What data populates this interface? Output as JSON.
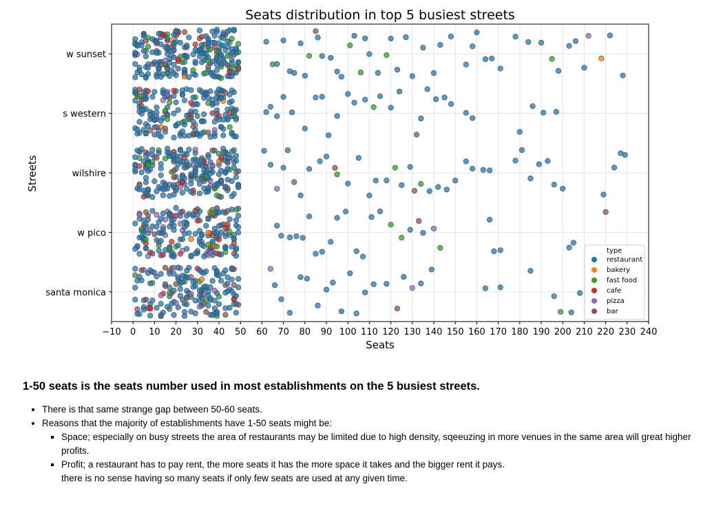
{
  "chart_data": {
    "type": "scatter",
    "title": "Seats distribution in top 5 busiest streets",
    "xlabel": "Seats",
    "ylabel": "Streets",
    "xlim": [
      -10,
      240
    ],
    "x_ticks": [
      -10,
      0,
      10,
      20,
      30,
      40,
      50,
      60,
      70,
      80,
      90,
      100,
      110,
      120,
      130,
      140,
      150,
      160,
      170,
      180,
      190,
      200,
      210,
      220,
      230,
      240
    ],
    "x_tick_labels": [
      "−10",
      "0",
      "10",
      "20",
      "30",
      "40",
      "50",
      "60",
      "70",
      "80",
      "90",
      "100",
      "110",
      "120",
      "130",
      "140",
      "150",
      "160",
      "170",
      "180",
      "190",
      "200",
      "210",
      "220",
      "230",
      "240"
    ],
    "categories": [
      "w sunset",
      "s western",
      "wilshire",
      "w pico",
      "santa monica"
    ],
    "grid": true,
    "jitter": "strip (vertical jitter within each street band)",
    "legend": {
      "title": "type",
      "placement": "bottom-right",
      "entries": [
        {
          "name": "restaurant",
          "color": "#1f77b4"
        },
        {
          "name": "bakery",
          "color": "#ff7f0e"
        },
        {
          "name": "fast food",
          "color": "#2ca02c"
        },
        {
          "name": "cafe",
          "color": "#d62728"
        },
        {
          "name": "pizza",
          "color": "#9467bd"
        },
        {
          "name": "bar",
          "color": "#8c564b"
        }
      ]
    },
    "density_summary": [
      {
        "street": "w sunset",
        "seats_1_50_points_approx": 240
      },
      {
        "street": "s western",
        "seats_1_50_points_approx": 200
      },
      {
        "street": "wilshire",
        "seats_1_50_points_approx": 230
      },
      {
        "street": "w pico",
        "seats_1_50_points_approx": 200
      },
      {
        "street": "santa monica",
        "seats_1_50_points_approx": 170
      }
    ],
    "points_above_50": [
      {
        "street": "w sunset",
        "type": "restaurant",
        "x": 62
      },
      {
        "street": "w sunset",
        "type": "fast food",
        "x": 65
      },
      {
        "street": "w sunset",
        "type": "restaurant",
        "x": 67
      },
      {
        "street": "w sunset",
        "type": "restaurant",
        "x": 70
      },
      {
        "street": "w sunset",
        "type": "restaurant",
        "x": 73
      },
      {
        "street": "w sunset",
        "type": "restaurant",
        "x": 75
      },
      {
        "street": "w sunset",
        "type": "restaurant",
        "x": 78
      },
      {
        "street": "w sunset",
        "type": "restaurant",
        "x": 80
      },
      {
        "street": "w sunset",
        "type": "fast food",
        "x": 82
      },
      {
        "street": "w sunset",
        "type": "bar",
        "x": 85
      },
      {
        "street": "w sunset",
        "type": "restaurant",
        "x": 86
      },
      {
        "street": "w sunset",
        "type": "restaurant",
        "x": 88
      },
      {
        "street": "w sunset",
        "type": "restaurant",
        "x": 92
      },
      {
        "street": "w sunset",
        "type": "restaurant",
        "x": 95
      },
      {
        "street": "w sunset",
        "type": "restaurant",
        "x": 97
      },
      {
        "street": "w sunset",
        "type": "fast food",
        "x": 101
      },
      {
        "street": "w sunset",
        "type": "restaurant",
        "x": 103
      },
      {
        "street": "w sunset",
        "type": "fast food",
        "x": 106
      },
      {
        "street": "w sunset",
        "type": "restaurant",
        "x": 108
      },
      {
        "street": "w sunset",
        "type": "restaurant",
        "x": 110
      },
      {
        "street": "w sunset",
        "type": "restaurant",
        "x": 114
      },
      {
        "street": "w sunset",
        "type": "fast food",
        "x": 118
      },
      {
        "street": "w sunset",
        "type": "restaurant",
        "x": 120
      },
      {
        "street": "w sunset",
        "type": "restaurant",
        "x": 123
      },
      {
        "street": "w sunset",
        "type": "restaurant",
        "x": 127
      },
      {
        "street": "w sunset",
        "type": "restaurant",
        "x": 130
      },
      {
        "street": "w sunset",
        "type": "restaurant",
        "x": 135
      },
      {
        "street": "w sunset",
        "type": "restaurant",
        "x": 140
      },
      {
        "street": "w sunset",
        "type": "restaurant",
        "x": 143
      },
      {
        "street": "w sunset",
        "type": "restaurant",
        "x": 148
      },
      {
        "street": "w sunset",
        "type": "restaurant",
        "x": 155
      },
      {
        "street": "w sunset",
        "type": "restaurant",
        "x": 158
      },
      {
        "street": "w sunset",
        "type": "restaurant",
        "x": 160
      },
      {
        "street": "w sunset",
        "type": "restaurant",
        "x": 164
      },
      {
        "street": "w sunset",
        "type": "restaurant",
        "x": 167
      },
      {
        "street": "w sunset",
        "type": "restaurant",
        "x": 171
      },
      {
        "street": "w sunset",
        "type": "restaurant",
        "x": 178
      },
      {
        "street": "w sunset",
        "type": "restaurant",
        "x": 184
      },
      {
        "street": "w sunset",
        "type": "restaurant",
        "x": 190
      },
      {
        "street": "w sunset",
        "type": "fast food",
        "x": 195
      },
      {
        "street": "w sunset",
        "type": "restaurant",
        "x": 198
      },
      {
        "street": "w sunset",
        "type": "restaurant",
        "x": 203
      },
      {
        "street": "w sunset",
        "type": "restaurant",
        "x": 206
      },
      {
        "street": "w sunset",
        "type": "restaurant",
        "x": 210
      },
      {
        "street": "w sunset",
        "type": "pizza",
        "x": 212
      },
      {
        "street": "w sunset",
        "type": "bakery",
        "x": 218
      },
      {
        "street": "w sunset",
        "type": "restaurant",
        "x": 222
      },
      {
        "street": "w sunset",
        "type": "restaurant",
        "x": 228
      },
      {
        "street": "s western",
        "type": "restaurant",
        "x": 62
      },
      {
        "street": "s western",
        "type": "restaurant",
        "x": 64
      },
      {
        "street": "s western",
        "type": "restaurant",
        "x": 67
      },
      {
        "street": "s western",
        "type": "restaurant",
        "x": 70
      },
      {
        "street": "s western",
        "type": "restaurant",
        "x": 74
      },
      {
        "street": "s western",
        "type": "restaurant",
        "x": 80
      },
      {
        "street": "s western",
        "type": "restaurant",
        "x": 85
      },
      {
        "street": "s western",
        "type": "restaurant",
        "x": 88
      },
      {
        "street": "s western",
        "type": "restaurant",
        "x": 91
      },
      {
        "street": "s western",
        "type": "restaurant",
        "x": 95
      },
      {
        "street": "s western",
        "type": "restaurant",
        "x": 100
      },
      {
        "street": "s western",
        "type": "restaurant",
        "x": 103
      },
      {
        "street": "s western",
        "type": "restaurant",
        "x": 108
      },
      {
        "street": "s western",
        "type": "fast food",
        "x": 112
      },
      {
        "street": "s western",
        "type": "restaurant",
        "x": 115
      },
      {
        "street": "s western",
        "type": "restaurant",
        "x": 120
      },
      {
        "street": "s western",
        "type": "restaurant",
        "x": 124
      },
      {
        "street": "s western",
        "type": "bar",
        "x": 132
      },
      {
        "street": "s western",
        "type": "restaurant",
        "x": 134
      },
      {
        "street": "s western",
        "type": "restaurant",
        "x": 137
      },
      {
        "street": "s western",
        "type": "restaurant",
        "x": 141
      },
      {
        "street": "s western",
        "type": "restaurant",
        "x": 145
      },
      {
        "street": "s western",
        "type": "restaurant",
        "x": 148
      },
      {
        "street": "s western",
        "type": "restaurant",
        "x": 155
      },
      {
        "street": "s western",
        "type": "restaurant",
        "x": 158
      },
      {
        "street": "s western",
        "type": "restaurant",
        "x": 180
      },
      {
        "street": "s western",
        "type": "restaurant",
        "x": 186
      },
      {
        "street": "s western",
        "type": "restaurant",
        "x": 191
      },
      {
        "street": "s western",
        "type": "restaurant",
        "x": 197
      },
      {
        "street": "wilshire",
        "type": "restaurant",
        "x": 61
      },
      {
        "street": "wilshire",
        "type": "restaurant",
        "x": 64
      },
      {
        "street": "wilshire",
        "type": "pizza",
        "x": 67
      },
      {
        "street": "wilshire",
        "type": "restaurant",
        "x": 70
      },
      {
        "street": "wilshire",
        "type": "restaurant",
        "x": 72
      },
      {
        "street": "wilshire",
        "type": "bar",
        "x": 75
      },
      {
        "street": "wilshire",
        "type": "restaurant",
        "x": 78
      },
      {
        "street": "wilshire",
        "type": "restaurant",
        "x": 82
      },
      {
        "street": "wilshire",
        "type": "restaurant",
        "x": 87
      },
      {
        "street": "wilshire",
        "type": "restaurant",
        "x": 90
      },
      {
        "street": "wilshire",
        "type": "bar",
        "x": 94
      },
      {
        "street": "wilshire",
        "type": "fast food",
        "x": 95
      },
      {
        "street": "wilshire",
        "type": "restaurant",
        "x": 100
      },
      {
        "street": "wilshire",
        "type": "restaurant",
        "x": 105
      },
      {
        "street": "wilshire",
        "type": "restaurant",
        "x": 110
      },
      {
        "street": "wilshire",
        "type": "restaurant",
        "x": 113
      },
      {
        "street": "wilshire",
        "type": "restaurant",
        "x": 118
      },
      {
        "street": "wilshire",
        "type": "fast food",
        "x": 122
      },
      {
        "street": "wilshire",
        "type": "restaurant",
        "x": 125
      },
      {
        "street": "wilshire",
        "type": "restaurant",
        "x": 129
      },
      {
        "street": "wilshire",
        "type": "bar",
        "x": 131
      },
      {
        "street": "wilshire",
        "type": "fast food",
        "x": 134
      },
      {
        "street": "wilshire",
        "type": "restaurant",
        "x": 138
      },
      {
        "street": "wilshire",
        "type": "restaurant",
        "x": 142
      },
      {
        "street": "wilshire",
        "type": "restaurant",
        "x": 146
      },
      {
        "street": "wilshire",
        "type": "restaurant",
        "x": 150
      },
      {
        "street": "wilshire",
        "type": "restaurant",
        "x": 155
      },
      {
        "street": "wilshire",
        "type": "restaurant",
        "x": 158
      },
      {
        "street": "wilshire",
        "type": "restaurant",
        "x": 163
      },
      {
        "street": "wilshire",
        "type": "restaurant",
        "x": 166
      },
      {
        "street": "wilshire",
        "type": "restaurant",
        "x": 178
      },
      {
        "street": "wilshire",
        "type": "restaurant",
        "x": 181
      },
      {
        "street": "wilshire",
        "type": "restaurant",
        "x": 185
      },
      {
        "street": "wilshire",
        "type": "restaurant",
        "x": 189
      },
      {
        "street": "wilshire",
        "type": "restaurant",
        "x": 193
      },
      {
        "street": "wilshire",
        "type": "restaurant",
        "x": 196
      },
      {
        "street": "wilshire",
        "type": "restaurant",
        "x": 200
      },
      {
        "street": "wilshire",
        "type": "restaurant",
        "x": 219
      },
      {
        "street": "wilshire",
        "type": "restaurant",
        "x": 224
      },
      {
        "street": "wilshire",
        "type": "restaurant",
        "x": 227
      },
      {
        "street": "wilshire",
        "type": "restaurant",
        "x": 229
      },
      {
        "street": "w pico",
        "type": "restaurant",
        "x": 67
      },
      {
        "street": "w pico",
        "type": "restaurant",
        "x": 69
      },
      {
        "street": "w pico",
        "type": "restaurant",
        "x": 73
      },
      {
        "street": "w pico",
        "type": "restaurant",
        "x": 76
      },
      {
        "street": "w pico",
        "type": "restaurant",
        "x": 79
      },
      {
        "street": "w pico",
        "type": "restaurant",
        "x": 82
      },
      {
        "street": "w pico",
        "type": "restaurant",
        "x": 85
      },
      {
        "street": "w pico",
        "type": "restaurant",
        "x": 88
      },
      {
        "street": "w pico",
        "type": "restaurant",
        "x": 92
      },
      {
        "street": "w pico",
        "type": "restaurant",
        "x": 95
      },
      {
        "street": "w pico",
        "type": "restaurant",
        "x": 99
      },
      {
        "street": "w pico",
        "type": "restaurant",
        "x": 104
      },
      {
        "street": "w pico",
        "type": "restaurant",
        "x": 107
      },
      {
        "street": "w pico",
        "type": "restaurant",
        "x": 111
      },
      {
        "street": "w pico",
        "type": "restaurant",
        "x": 115
      },
      {
        "street": "w pico",
        "type": "fast food",
        "x": 120
      },
      {
        "street": "w pico",
        "type": "fast food",
        "x": 125
      },
      {
        "street": "w pico",
        "type": "restaurant",
        "x": 129
      },
      {
        "street": "w pico",
        "type": "bar",
        "x": 133
      },
      {
        "street": "w pico",
        "type": "restaurant",
        "x": 135
      },
      {
        "street": "w pico",
        "type": "pizza",
        "x": 140
      },
      {
        "street": "w pico",
        "type": "fast food",
        "x": 143
      },
      {
        "street": "w pico",
        "type": "restaurant",
        "x": 166
      },
      {
        "street": "w pico",
        "type": "restaurant",
        "x": 168
      },
      {
        "street": "w pico",
        "type": "restaurant",
        "x": 171
      },
      {
        "street": "w pico",
        "type": "restaurant",
        "x": 203
      },
      {
        "street": "w pico",
        "type": "restaurant",
        "x": 205
      },
      {
        "street": "w pico",
        "type": "bar",
        "x": 220
      },
      {
        "street": "santa monica",
        "type": "restaurant",
        "x": 66
      },
      {
        "street": "santa monica",
        "type": "pizza",
        "x": 64
      },
      {
        "street": "santa monica",
        "type": "restaurant",
        "x": 69
      },
      {
        "street": "santa monica",
        "type": "restaurant",
        "x": 73
      },
      {
        "street": "santa monica",
        "type": "restaurant",
        "x": 78
      },
      {
        "street": "santa monica",
        "type": "restaurant",
        "x": 81
      },
      {
        "street": "santa monica",
        "type": "restaurant",
        "x": 86
      },
      {
        "street": "santa monica",
        "type": "restaurant",
        "x": 90
      },
      {
        "street": "santa monica",
        "type": "restaurant",
        "x": 93
      },
      {
        "street": "santa monica",
        "type": "restaurant",
        "x": 97
      },
      {
        "street": "santa monica",
        "type": "restaurant",
        "x": 101
      },
      {
        "street": "santa monica",
        "type": "restaurant",
        "x": 104
      },
      {
        "street": "santa monica",
        "type": "restaurant",
        "x": 108
      },
      {
        "street": "santa monica",
        "type": "restaurant",
        "x": 112
      },
      {
        "street": "santa monica",
        "type": "restaurant",
        "x": 118
      },
      {
        "street": "santa monica",
        "type": "bar",
        "x": 123
      },
      {
        "street": "santa monica",
        "type": "restaurant",
        "x": 126
      },
      {
        "street": "santa monica",
        "type": "pizza",
        "x": 130
      },
      {
        "street": "santa monica",
        "type": "restaurant",
        "x": 134
      },
      {
        "street": "santa monica",
        "type": "restaurant",
        "x": 139
      },
      {
        "street": "santa monica",
        "type": "restaurant",
        "x": 164
      },
      {
        "street": "santa monica",
        "type": "restaurant",
        "x": 171
      },
      {
        "street": "santa monica",
        "type": "restaurant",
        "x": 185
      },
      {
        "street": "santa monica",
        "type": "restaurant",
        "x": 196
      },
      {
        "street": "santa monica",
        "type": "fast food",
        "x": 199
      },
      {
        "street": "santa monica",
        "type": "restaurant",
        "x": 204
      },
      {
        "street": "santa monica",
        "type": "restaurant",
        "x": 208
      }
    ]
  },
  "notes": {
    "heading": "1-50 seats is the seats number used in most establishments on the 5 busiest streets.",
    "bullet_1": "There is that same strange gap between 50-60 seats.",
    "bullet_2": "Reasons that the majority of establishments have 1-50 seats might be:",
    "sub_bullet_1": "Space; especially on busy streets the area of restaurants may be limited due to high density, sqeeuzing in more venues in the same area will great higher profits.",
    "sub_bullet_2_line_1": "Profit; a restaurant has to pay rent, the more seats it has the more space it takes and the bigger rent it pays.",
    "sub_bullet_2_line_2": "there is no sense having so many seats if only few seats are used at any given time."
  }
}
